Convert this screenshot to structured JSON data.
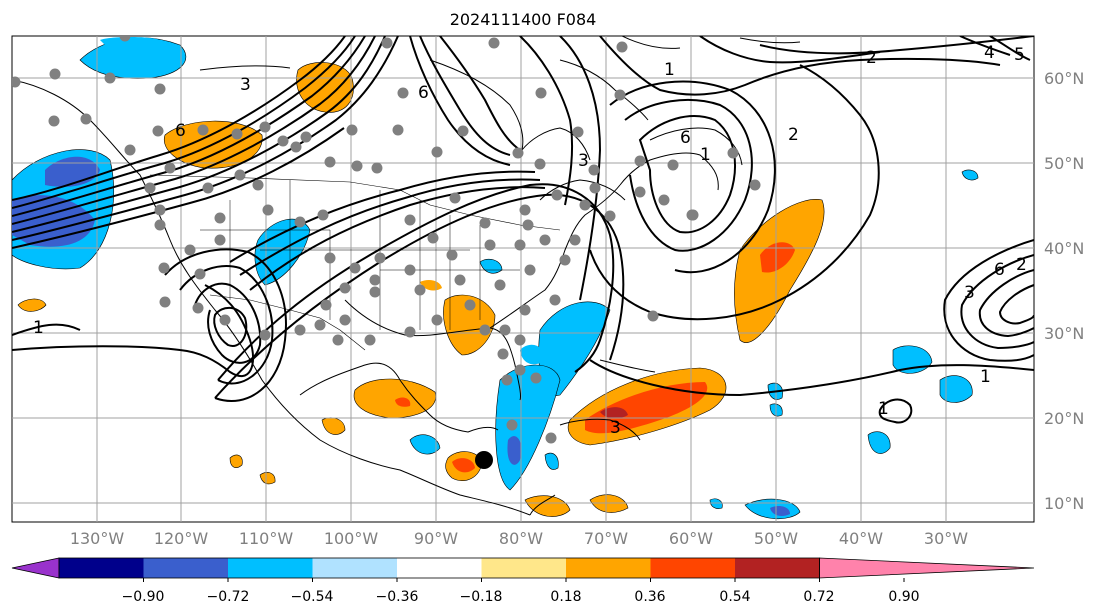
{
  "title": "2024111400 F084",
  "longitude_labels": [
    "130°W",
    "120°W",
    "110°W",
    "100°W",
    "90°W",
    "80°W",
    "70°W",
    "60°W",
    "50°W",
    "40°W",
    "30°W"
  ],
  "latitude_labels": [
    "60°N",
    "50°N",
    "40°N",
    "30°N",
    "20°N",
    "10°N"
  ],
  "colorbar": {
    "tick_labels": [
      "−0.90",
      "−0.72",
      "−0.54",
      "−0.36",
      "−0.18",
      "0.18",
      "0.36",
      "0.54",
      "0.72",
      "0.90"
    ],
    "colors": [
      "#9932cc",
      "#00008b",
      "#3a5fcd",
      "#00bfff",
      "#b0e2ff",
      "#ffffff",
      "#ffe78a",
      "#ffa500",
      "#ff4500",
      "#b22222",
      "#ff82ab"
    ]
  },
  "contour_labels": [
    "1",
    "1",
    "1",
    "1",
    "1",
    "2",
    "2",
    "2",
    "3",
    "3",
    "3",
    "4",
    "5",
    "6",
    "6",
    "6",
    "6",
    "3"
  ],
  "map": {
    "extent_lon": [
      -138,
      -17
    ],
    "extent_lat": [
      7,
      65
    ],
    "projection": "Lambert-like regional map"
  },
  "colors": {
    "grid": "#a0a0a0",
    "coast": "#000000",
    "station": "#808080",
    "storm_marker": "#000000"
  }
}
